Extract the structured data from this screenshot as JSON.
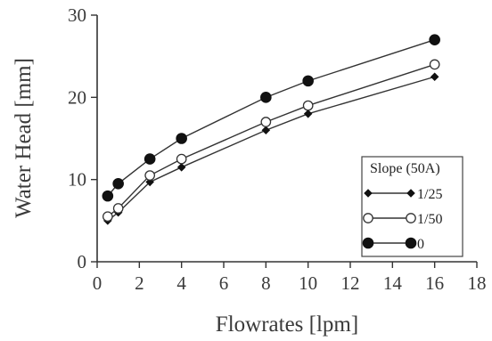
{
  "chart_data": {
    "type": "line",
    "xlabel": "Flowrates [lpm]",
    "ylabel": "Water Head [mm]",
    "xlim": [
      0,
      18
    ],
    "ylim": [
      0,
      30
    ],
    "xticks": [
      "0",
      "2",
      "4",
      "6",
      "8",
      "10",
      "12",
      "14",
      "16",
      "18"
    ],
    "yticks": [
      "0",
      "10",
      "20",
      "30"
    ],
    "grid": false,
    "legend": {
      "title": "Slope (50A)",
      "placement": "bottom-right"
    },
    "x": [
      0.5,
      1,
      2.5,
      4,
      8,
      10,
      16
    ],
    "series": [
      {
        "name": "1/25",
        "marker": "diamond-small",
        "values": [
          5.0,
          6.0,
          9.7,
          11.5,
          16.0,
          18.0,
          22.5
        ]
      },
      {
        "name": "1/50",
        "marker": "open-circle",
        "values": [
          5.5,
          6.5,
          10.5,
          12.5,
          17.0,
          19.0,
          24.0
        ]
      },
      {
        "name": "0",
        "marker": "filled-circle",
        "values": [
          8.0,
          9.5,
          12.5,
          15.0,
          20.0,
          22.0,
          27.0
        ]
      }
    ],
    "colors": {
      "axis": "#333333",
      "line": "#333333",
      "marker_fill": "#111111"
    }
  }
}
